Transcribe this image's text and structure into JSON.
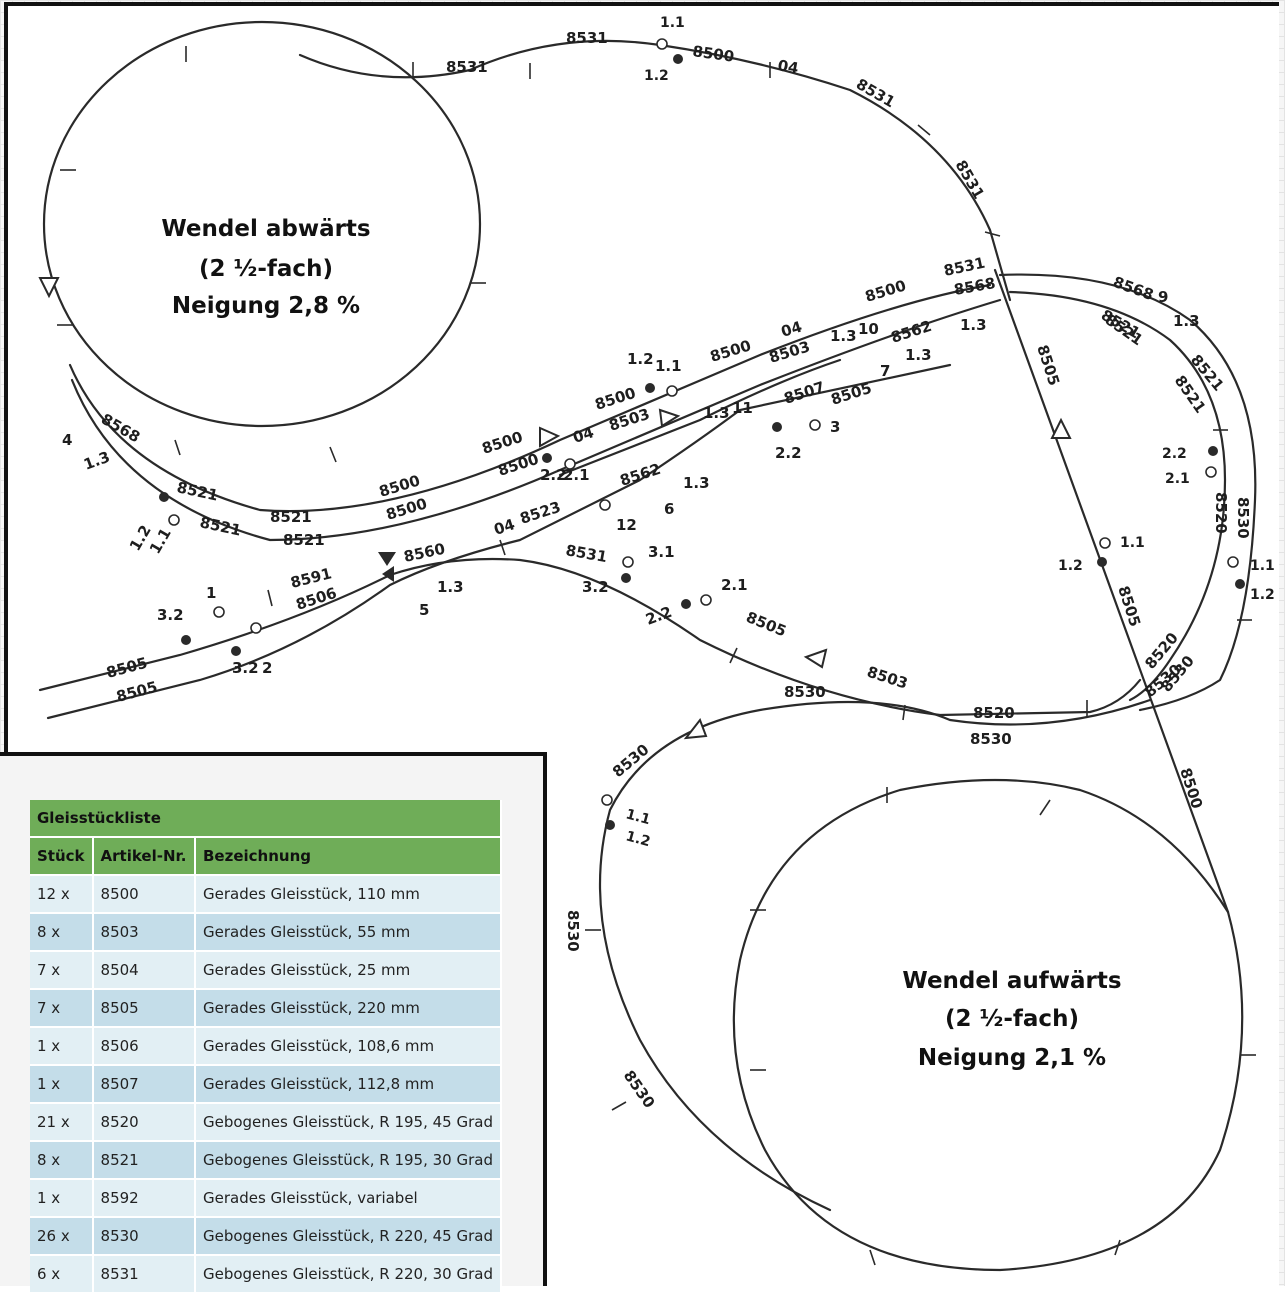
{
  "spirals": {
    "down": {
      "title": "Wendel abwärts",
      "factor": "(2 ½-fach)",
      "slope": "Neigung 2,8 %"
    },
    "up": {
      "title": "Wendel aufwärts",
      "factor": "(2 ½-fach)",
      "slope": "Neigung 2,1 %"
    }
  },
  "track_labels": [
    "8531",
    "8531",
    "8500",
    "04",
    "8531",
    "8531",
    "1.1",
    "1.2",
    "8505",
    "8500",
    "8531",
    "8568",
    "8568",
    "9",
    "1.3",
    "8521",
    "8521",
    "1.3",
    "8500",
    "04",
    "1.3",
    "10",
    "8562",
    "7",
    "1.3",
    "8503",
    "8507",
    "8505",
    "11",
    "1.3",
    "8500",
    "8500",
    "8503",
    "1.2",
    "1.1",
    "8500",
    "04",
    "2.2",
    "2.1",
    "8562",
    "6",
    "1.3",
    "8523",
    "12",
    "2.2",
    "3",
    "4",
    "1.3",
    "8568",
    "8521",
    "8521",
    "1.2",
    "1.1",
    "8521",
    "8521",
    "8500",
    "8500",
    "8560",
    "8591",
    "8506",
    "1.3",
    "5",
    "04",
    "8531",
    "3.1",
    "3.2",
    "2.1",
    "2.2",
    "8505",
    "8505",
    "8505",
    "3.2",
    "1",
    "3.2",
    "2",
    "8503",
    "8520",
    "8530",
    "8530",
    "8530",
    "8530",
    "1.1",
    "1.2",
    "8530",
    "8530",
    "1.1",
    "1.2",
    "8505",
    "8500",
    "8520",
    "8530",
    "2.2",
    "2.1",
    "8520",
    "1.1",
    "1.2",
    "8530",
    "8521",
    "8521"
  ],
  "parts_list": {
    "title": "Gleisstückliste",
    "headers": [
      "Stück",
      "Artikel-Nr.",
      "Bezeichnung"
    ],
    "rows": [
      [
        "12 x",
        "8500",
        "Gerades Gleisstück, 110 mm"
      ],
      [
        "8 x",
        "8503",
        "Gerades Gleisstück, 55 mm"
      ],
      [
        "7 x",
        "8504",
        "Gerades Gleisstück, 25 mm"
      ],
      [
        "7 x",
        "8505",
        "Gerades Gleisstück, 220 mm"
      ],
      [
        "1 x",
        "8506",
        "Gerades Gleisstück, 108,6 mm"
      ],
      [
        "1 x",
        "8507",
        "Gerades Gleisstück, 112,8 mm"
      ],
      [
        "21 x",
        "8520",
        "Gebogenes Gleisstück, R 195, 45 Grad"
      ],
      [
        "8 x",
        "8521",
        "Gebogenes Gleisstück, R 195, 30 Grad"
      ],
      [
        "1 x",
        "8592",
        "Gerades Gleisstück, variabel"
      ],
      [
        "26 x",
        "8530",
        "Gebogenes Gleisstück, R 220, 45 Grad"
      ],
      [
        "6 x",
        "8531",
        "Gebogenes Gleisstück, R 220, 30 Grad"
      ]
    ]
  }
}
